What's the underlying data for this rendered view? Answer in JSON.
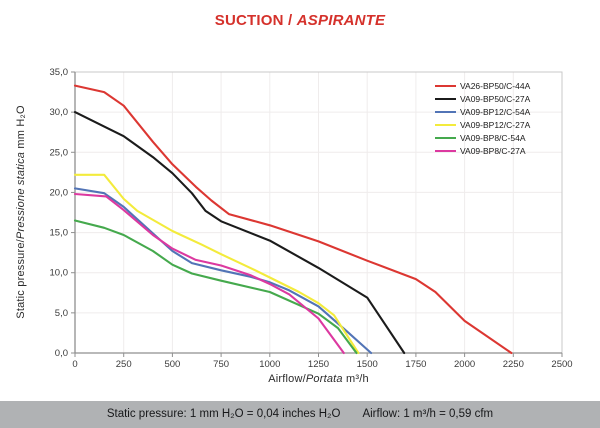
{
  "title": {
    "part1": "SUCTION / ",
    "part2": "ASPIRANTE",
    "color": "#d5312b"
  },
  "footer": {
    "static_pressure": "Static pressure: 1 mm H₂O = 0,04 inches H₂O",
    "airflow": "Airflow: 1 m³/h = 0,59 cfm"
  },
  "chart_data": {
    "type": "line",
    "title": "SUCTION / ASPIRANTE",
    "xlabel_en": "Airflow/",
    "xlabel_it": "Portata",
    "xlabel_unit": " m³/h",
    "ylabel_en": "Static pressure/",
    "ylabel_it": "Pressione statica",
    "ylabel_unit": " mm H₂O",
    "xlim": [
      0,
      2500
    ],
    "ylim": [
      0,
      35
    ],
    "x_ticks": [
      0,
      250,
      500,
      750,
      1000,
      1250,
      1500,
      1750,
      2000,
      2250,
      2500
    ],
    "x_tick_labels": [
      "0",
      "250",
      "500",
      "750",
      "1000",
      "1250",
      "1500",
      "1750",
      "2000",
      "2250",
      "2500"
    ],
    "y_ticks": [
      0,
      5,
      10,
      15,
      20,
      25,
      30,
      35
    ],
    "y_tick_labels": [
      "0,0",
      "5,0",
      "10,0",
      "15,0",
      "20,0",
      "25,0",
      "30,0",
      "35,0"
    ],
    "grid": true,
    "legend_position": "top-right",
    "colors": {
      "grid": "#efecec",
      "border": "#c9c9c9",
      "axis": "#8f8f8f",
      "tick_text": "#3a3a3a"
    },
    "series": [
      {
        "name": "VA26-BP50/C-44A",
        "color": "#dc3732",
        "points": [
          [
            0,
            33.3
          ],
          [
            150,
            32.5
          ],
          [
            250,
            30.8
          ],
          [
            400,
            26.3
          ],
          [
            500,
            23.5
          ],
          [
            620,
            20.7
          ],
          [
            700,
            19.0
          ],
          [
            790,
            17.3
          ],
          [
            1000,
            15.9
          ],
          [
            1250,
            13.9
          ],
          [
            1500,
            11.5
          ],
          [
            1750,
            9.2
          ],
          [
            1850,
            7.6
          ],
          [
            2000,
            4.0
          ],
          [
            2240,
            0
          ]
        ]
      },
      {
        "name": "VA09-BP50/C-27A",
        "color": "#1b1b1b",
        "points": [
          [
            0,
            30.0
          ],
          [
            250,
            27.0
          ],
          [
            400,
            24.4
          ],
          [
            500,
            22.4
          ],
          [
            600,
            19.9
          ],
          [
            670,
            17.7
          ],
          [
            750,
            16.4
          ],
          [
            1000,
            14.0
          ],
          [
            1250,
            10.6
          ],
          [
            1500,
            6.9
          ],
          [
            1690,
            0
          ]
        ]
      },
      {
        "name": "VA09-BP12/C-54A",
        "color": "#5274b6",
        "points": [
          [
            0,
            20.5
          ],
          [
            150,
            19.9
          ],
          [
            250,
            18.2
          ],
          [
            400,
            14.9
          ],
          [
            500,
            12.7
          ],
          [
            600,
            11.2
          ],
          [
            750,
            10.3
          ],
          [
            900,
            9.5
          ],
          [
            1000,
            8.8
          ],
          [
            1100,
            7.8
          ],
          [
            1250,
            5.8
          ],
          [
            1400,
            2.6
          ],
          [
            1520,
            0
          ]
        ]
      },
      {
        "name": "VA09-BP12/C-27A",
        "color": "#f3eb3c",
        "points": [
          [
            0,
            22.2
          ],
          [
            150,
            22.2
          ],
          [
            250,
            19.2
          ],
          [
            320,
            17.7
          ],
          [
            500,
            15.2
          ],
          [
            650,
            13.5
          ],
          [
            750,
            12.3
          ],
          [
            900,
            10.6
          ],
          [
            1000,
            9.4
          ],
          [
            1150,
            7.6
          ],
          [
            1250,
            6.2
          ],
          [
            1330,
            4.7
          ],
          [
            1455,
            0
          ]
        ]
      },
      {
        "name": "VA09-BP8/C-54A",
        "color": "#45a94d",
        "points": [
          [
            0,
            16.5
          ],
          [
            150,
            15.6
          ],
          [
            250,
            14.7
          ],
          [
            400,
            12.7
          ],
          [
            500,
            11.0
          ],
          [
            600,
            9.9
          ],
          [
            750,
            9.0
          ],
          [
            1000,
            7.6
          ],
          [
            1250,
            4.9
          ],
          [
            1350,
            3.1
          ],
          [
            1445,
            0
          ]
        ]
      },
      {
        "name": "VA09-BP8/C-27A",
        "color": "#dc39a0",
        "points": [
          [
            0,
            19.8
          ],
          [
            160,
            19.5
          ],
          [
            250,
            17.8
          ],
          [
            400,
            14.7
          ],
          [
            500,
            13.0
          ],
          [
            620,
            11.6
          ],
          [
            750,
            10.9
          ],
          [
            900,
            9.7
          ],
          [
            1000,
            8.6
          ],
          [
            1100,
            7.3
          ],
          [
            1250,
            4.3
          ],
          [
            1380,
            0
          ]
        ]
      }
    ]
  }
}
